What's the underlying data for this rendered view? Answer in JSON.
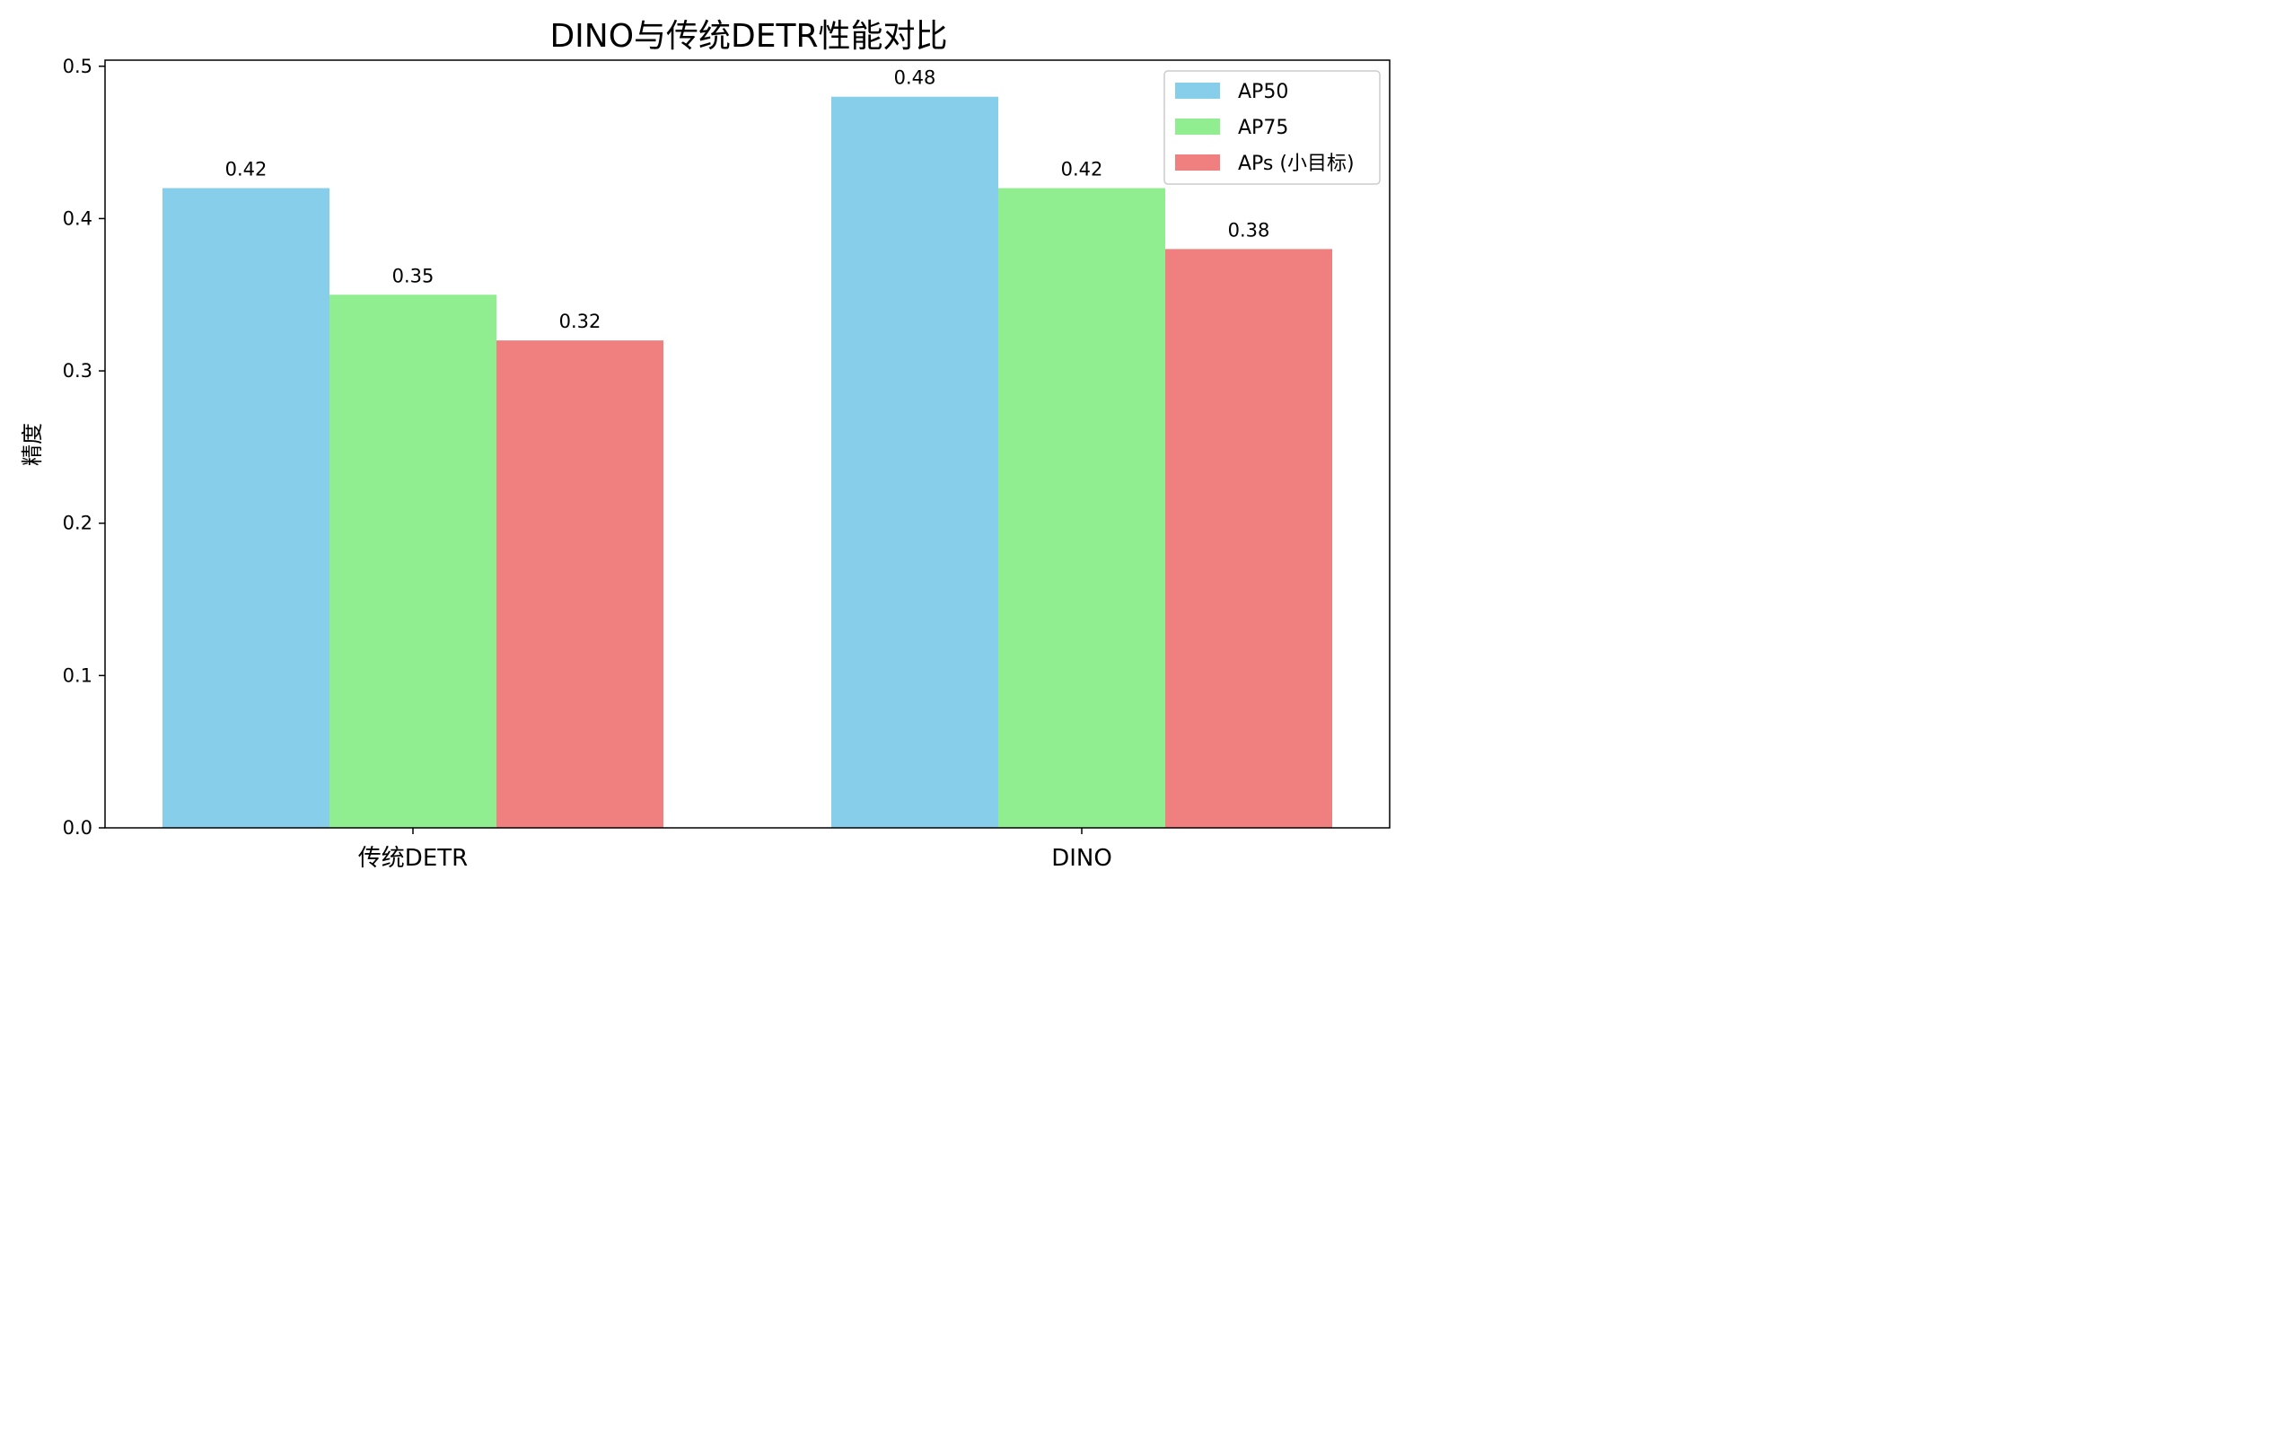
{
  "chart_data": {
    "type": "bar",
    "title": "DINO与传统DETR性能对比",
    "xlabel": "",
    "ylabel": "精度",
    "categories": [
      "传统DETR",
      "DINO"
    ],
    "series": [
      {
        "name": "AP50",
        "values": [
          0.42,
          0.48
        ],
        "color": "#87CEEB"
      },
      {
        "name": "AP75",
        "values": [
          0.35,
          0.42
        ],
        "color": "#90EE90"
      },
      {
        "name": "APs (小目标)",
        "values": [
          0.32,
          0.38
        ],
        "color": "#F08080"
      }
    ],
    "ylim": [
      0,
      0.504
    ],
    "yticks": [
      "0.0",
      "0.1",
      "0.2",
      "0.3",
      "0.4",
      "0.5"
    ],
    "legend_position": "top-right",
    "grid": false
  }
}
